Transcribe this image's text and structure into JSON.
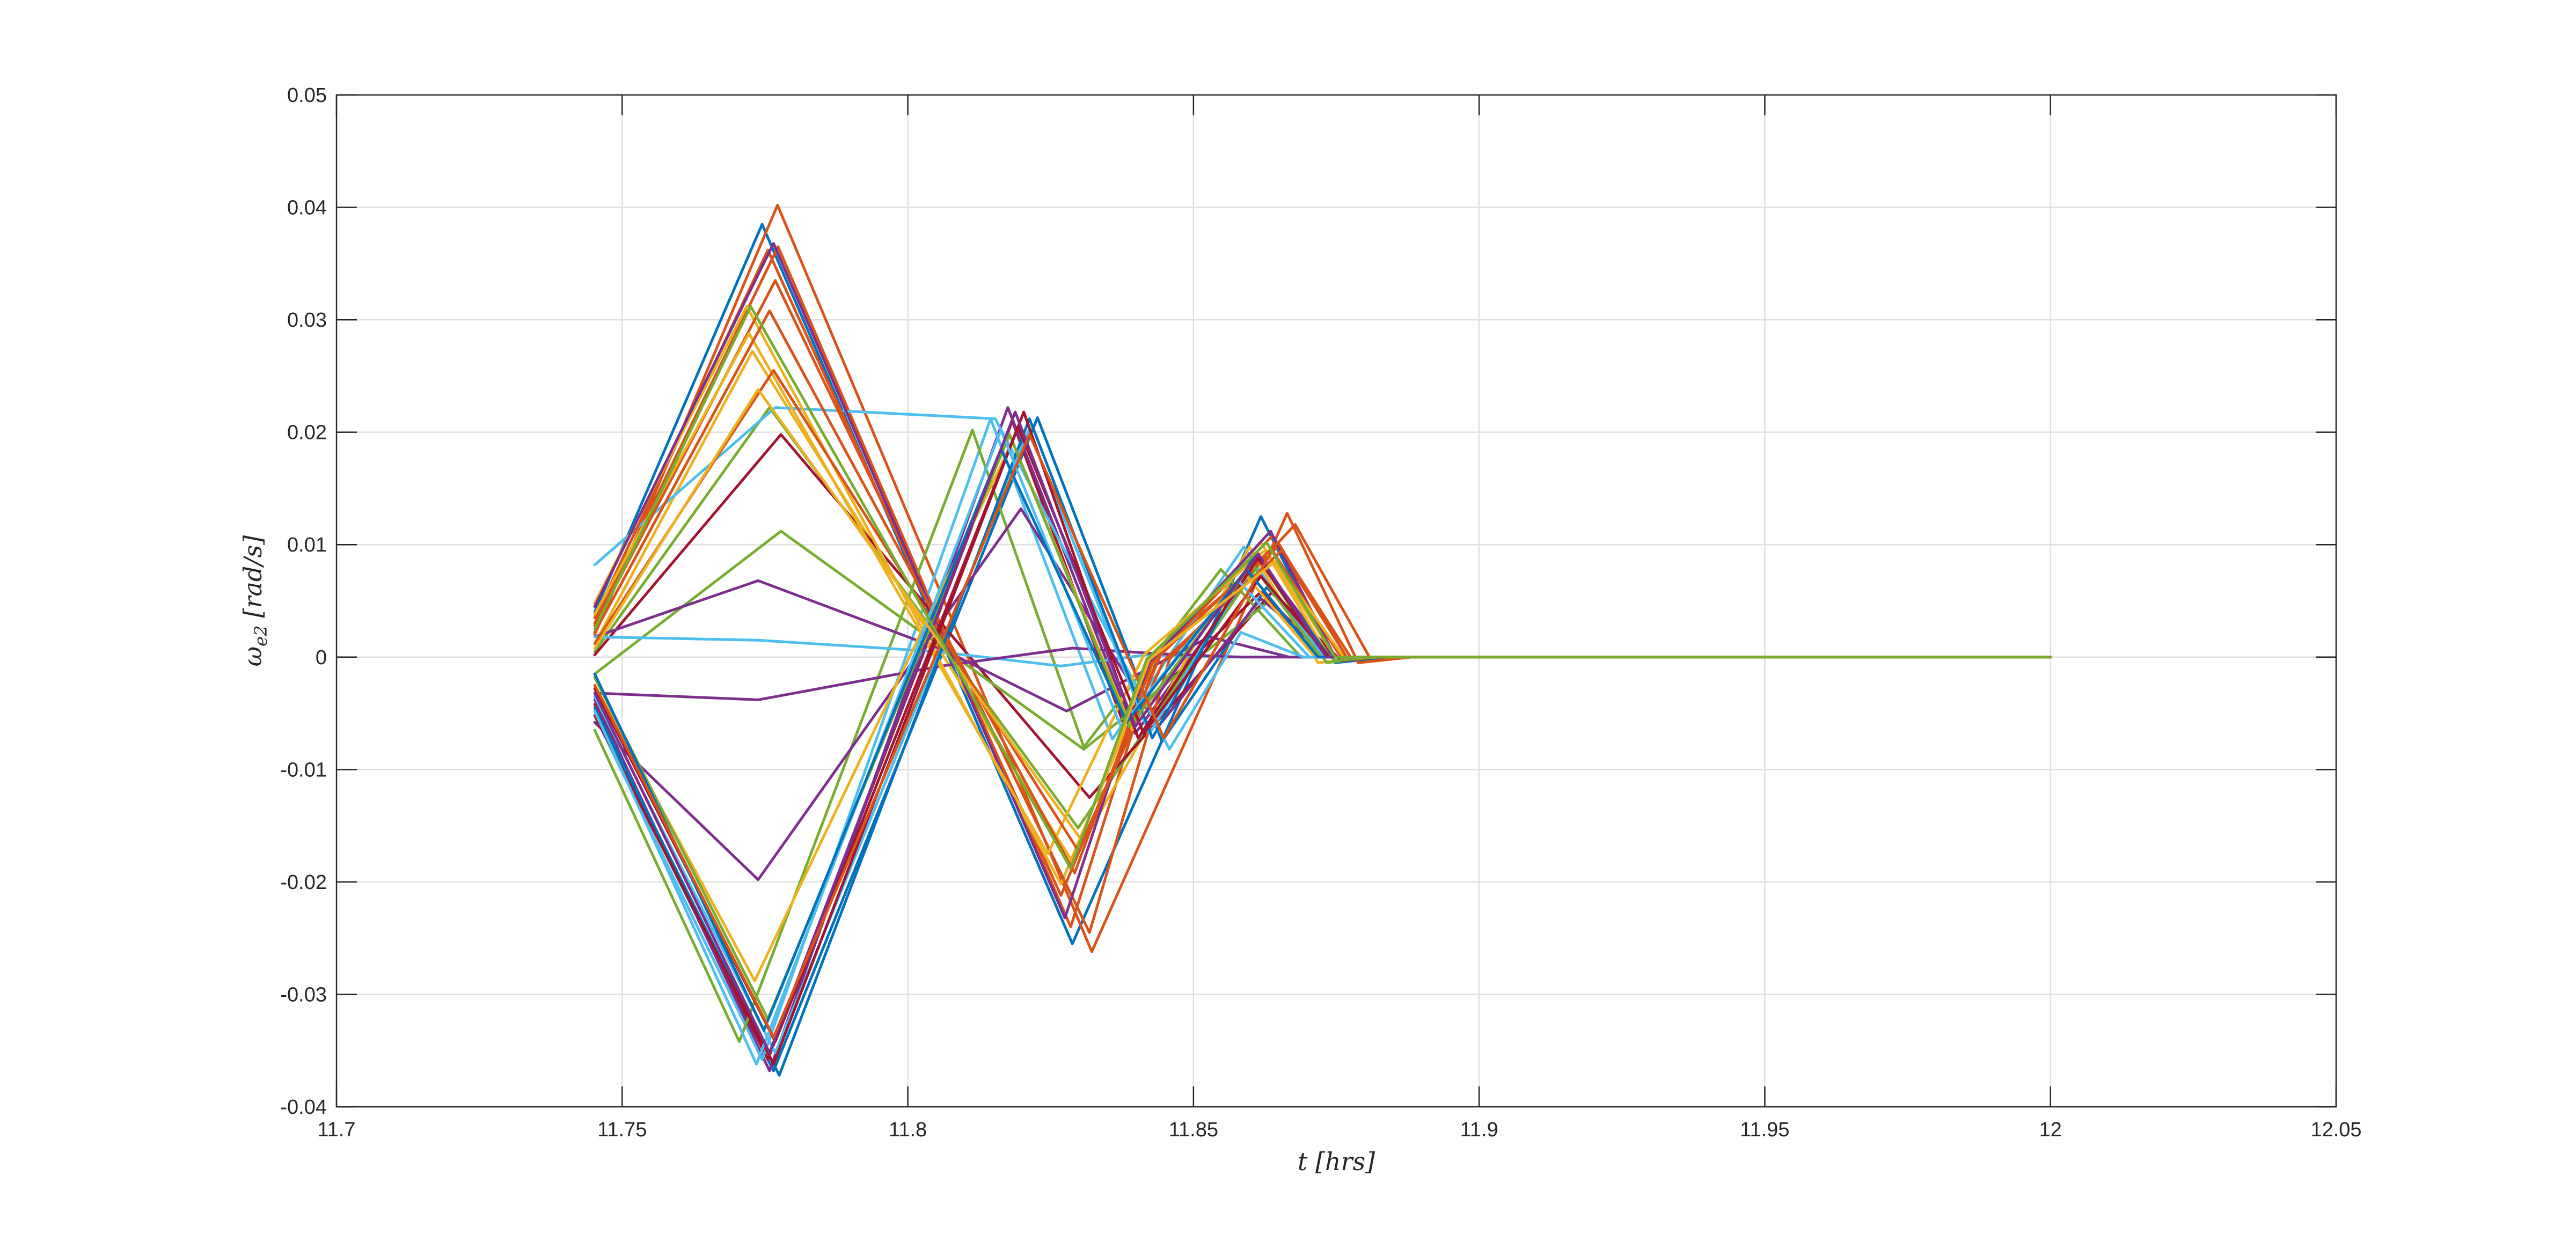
{
  "chart_data": {
    "type": "line",
    "title": "",
    "xlabel": "t [hrs]",
    "ylabel": "ωe2 [rad/s]",
    "ylabel_parts": {
      "symbol": "ω",
      "subscript": "e2",
      "unit": "[rad/s]"
    },
    "xlim": [
      11.7,
      12.05
    ],
    "ylim": [
      -0.04,
      0.05
    ],
    "xticks": [
      11.7,
      11.75,
      11.8,
      11.85,
      11.9,
      11.95,
      12,
      12.05
    ],
    "xtick_labels": [
      "11.7",
      "11.75",
      "11.8",
      "11.85",
      "11.9",
      "11.95",
      "12",
      "12.05"
    ],
    "yticks": [
      -0.04,
      -0.03,
      -0.02,
      -0.01,
      0,
      0.01,
      0.02,
      0.03,
      0.04,
      0.05
    ],
    "ytick_labels": [
      "-0.04",
      "-0.03",
      "-0.02",
      "-0.01",
      "0",
      "0.01",
      "0.02",
      "0.03",
      "0.04",
      "0.05"
    ],
    "grid": true,
    "legend": "none",
    "colors": [
      "#0072BD",
      "#D95319",
      "#EDB120",
      "#7E2F8E",
      "#77AC30",
      "#4DBEEE",
      "#A2142F"
    ],
    "series": [
      {
        "color": "#0072BD",
        "x": [
          11.7452,
          11.7745,
          11.8288,
          11.8618,
          11.8748,
          11.8843,
          12.0
        ],
        "y": [
          0.004,
          0.0385,
          -0.0255,
          0.0125,
          -0.0005,
          0.0,
          0.0
        ]
      },
      {
        "color": "#D95319",
        "x": [
          11.7452,
          11.7772,
          11.8322,
          11.8664,
          11.8788,
          11.8883,
          12.0
        ],
        "y": [
          0.002,
          0.0402,
          -0.0262,
          0.0128,
          -0.0005,
          0.0,
          0.0
        ]
      },
      {
        "color": "#0072BD",
        "x": [
          11.7452,
          11.7765,
          11.8227,
          11.8445,
          11.8628,
          11.8748,
          12.0
        ],
        "y": [
          -0.0048,
          -0.0368,
          0.0213,
          -0.0075,
          0.0062,
          0.0,
          0.0
        ]
      },
      {
        "color": "#D95319",
        "x": [
          11.7452,
          11.7773,
          11.8285,
          11.8438,
          11.8648,
          11.8768,
          12.0
        ],
        "y": [
          0.003,
          0.0365,
          -0.024,
          0.0005,
          0.0098,
          0.0,
          0.0
        ]
      },
      {
        "color": "#A2142F",
        "x": [
          11.7452,
          11.7755,
          11.8183,
          11.8378,
          11.8618,
          11.8733,
          12.0
        ],
        "y": [
          -0.0042,
          -0.0358,
          0.021,
          -0.006,
          0.0058,
          0.0,
          0.0
        ]
      },
      {
        "color": "#7E2F8E",
        "x": [
          11.7452,
          11.7758,
          11.8175,
          11.8398,
          11.8618,
          11.8743,
          12.0
        ],
        "y": [
          -0.0038,
          -0.0368,
          0.0222,
          -0.0068,
          0.0085,
          0.0,
          0.0
        ]
      },
      {
        "color": "#4DBEEE",
        "x": [
          11.7452,
          11.7745,
          11.8145,
          11.8358,
          11.8588,
          11.8718,
          12.0
        ],
        "y": [
          -0.0052,
          -0.0358,
          0.0212,
          -0.0073,
          0.0098,
          0.0,
          0.0
        ]
      },
      {
        "color": "#77AC30",
        "x": [
          11.7452,
          11.7705,
          11.8113,
          11.8308,
          11.8548,
          11.8688,
          12.0
        ],
        "y": [
          -0.0065,
          -0.0342,
          0.0202,
          -0.008,
          0.0078,
          0.0,
          0.0
        ]
      },
      {
        "color": "#EDB120",
        "x": [
          11.7452,
          11.7728,
          11.8288,
          11.8598,
          11.8718,
          11.8808,
          12.0
        ],
        "y": [
          0.0012,
          0.0272,
          -0.0182,
          0.0098,
          -0.0005,
          0.0,
          0.0
        ]
      },
      {
        "color": "#77AC30",
        "x": [
          11.7452,
          11.7758,
          11.8298,
          11.8618,
          11.8733,
          11.8818,
          12.0
        ],
        "y": [
          0.0005,
          0.0222,
          -0.0152,
          0.0085,
          -0.0005,
          0.0,
          0.0
        ]
      },
      {
        "color": "#A2142F",
        "x": [
          11.7452,
          11.7778,
          11.8318,
          11.8638,
          11.8758,
          11.8833,
          12.0
        ],
        "y": [
          0.0002,
          0.0198,
          -0.0125,
          0.0058,
          -0.0003,
          0.0,
          0.0
        ]
      },
      {
        "color": "#77AC30",
        "x": [
          11.7452,
          11.7778,
          11.8308,
          11.8628,
          11.8748,
          11.8828,
          12.0
        ],
        "y": [
          -0.0015,
          0.0112,
          -0.0082,
          0.0048,
          -0.0003,
          0.0,
          0.0
        ]
      },
      {
        "color": "#7E2F8E",
        "x": [
          11.7452,
          11.7738,
          11.8068,
          11.8278,
          11.8528,
          11.8668,
          12.0
        ],
        "y": [
          0.0018,
          0.0068,
          0.0005,
          -0.0048,
          0.0018,
          0.0,
          0.0
        ]
      },
      {
        "color": "#4DBEEE",
        "x": [
          11.7452,
          11.7738,
          11.8048,
          11.8268,
          11.8418,
          11.8543,
          12.0
        ],
        "y": [
          0.0018,
          0.0015,
          0.0005,
          -0.0008,
          0.0002,
          0.0,
          0.0
        ]
      },
      {
        "color": "#7E2F8E",
        "x": [
          11.7452,
          11.7738,
          11.8058,
          11.8288,
          11.8438,
          11.8583,
          12.0
        ],
        "y": [
          -0.0032,
          -0.0038,
          -0.0008,
          0.0008,
          0.0003,
          0.0,
          0.0
        ]
      },
      {
        "color": "#7E2F8E",
        "x": [
          11.7452,
          11.7738,
          11.8198,
          11.8438,
          11.8618,
          11.8738,
          12.0
        ],
        "y": [
          -0.0058,
          -0.0198,
          0.0132,
          -0.0062,
          0.0052,
          0.0,
          0.0
        ]
      },
      {
        "color": "#4DBEEE",
        "x": [
          11.7452,
          11.7768,
          11.8153,
          11.8458,
          11.8583,
          11.8693,
          12.0
        ],
        "y": [
          0.0082,
          0.0222,
          0.0212,
          -0.0082,
          0.0022,
          0.0,
          0.0
        ]
      },
      {
        "color": "#D95319",
        "x": [
          11.7452,
          11.7755,
          11.8268,
          11.8445,
          11.8638,
          11.8768,
          12.0
        ],
        "y": [
          0.0035,
          0.0362,
          -0.0212,
          0.0005,
          0.0108,
          0.0,
          0.0
        ]
      },
      {
        "color": "#EDB120",
        "x": [
          11.7452,
          11.7718,
          11.8268,
          11.8438,
          11.8618,
          11.8748,
          12.0
        ],
        "y": [
          0.0048,
          0.0312,
          -0.0202,
          0.0005,
          0.0102,
          0.0,
          0.0
        ]
      },
      {
        "color": "#D95319",
        "x": [
          11.7452,
          11.7768,
          11.8318,
          11.8458,
          11.8678,
          11.8808,
          12.0
        ],
        "y": [
          0.0028,
          0.0335,
          -0.0245,
          -0.0002,
          0.0118,
          0.0,
          0.0
        ]
      },
      {
        "color": "#7E2F8E",
        "x": [
          11.7452,
          11.7765,
          11.8275,
          11.8423,
          11.8635,
          11.8748,
          12.0
        ],
        "y": [
          0.0045,
          0.0368,
          -0.0232,
          -0.0005,
          0.0112,
          0.0,
          0.0
        ]
      },
      {
        "color": "#EDB120",
        "x": [
          11.7452,
          11.7722,
          11.8245,
          11.8413,
          11.8625,
          11.8738,
          12.0
        ],
        "y": [
          0.0038,
          0.0288,
          -0.0175,
          0.0002,
          0.0095,
          0.0,
          0.0
        ]
      },
      {
        "color": "#D95319",
        "x": [
          11.7452,
          11.7758,
          11.8292,
          11.8428,
          11.8648,
          11.8768,
          12.0
        ],
        "y": [
          0.0022,
          0.0308,
          -0.0192,
          -0.0005,
          0.0102,
          0.0,
          0.0
        ]
      },
      {
        "color": "#D95319",
        "x": [
          11.7452,
          11.7765,
          11.8298,
          11.8448,
          11.8655,
          11.8775,
          12.0
        ],
        "y": [
          0.0012,
          0.0255,
          -0.0172,
          -0.0003,
          0.0095,
          0.0,
          0.0
        ]
      },
      {
        "color": "#4DBEEE",
        "x": [
          11.7452,
          11.7768,
          11.8212,
          11.8423,
          11.8603,
          11.8728,
          12.0
        ],
        "y": [
          -0.0035,
          -0.0352,
          0.0202,
          -0.0068,
          0.0082,
          0.0,
          0.0
        ]
      },
      {
        "color": "#0072BD",
        "x": [
          11.7452,
          11.7775,
          11.8213,
          11.8428,
          11.8608,
          11.8738,
          12.0
        ],
        "y": [
          -0.0045,
          -0.0372,
          0.0212,
          -0.0072,
          0.0092,
          0.0,
          0.0
        ]
      },
      {
        "color": "#EDB120",
        "x": [
          11.7452,
          11.7732,
          11.8183,
          11.8393,
          11.8588,
          11.8713,
          12.0
        ],
        "y": [
          -0.0025,
          -0.0288,
          0.0192,
          -0.0065,
          0.0075,
          0.0,
          0.0
        ]
      },
      {
        "color": "#77AC30",
        "x": [
          11.7452,
          11.7755,
          11.8178,
          11.8388,
          11.8603,
          11.8723,
          12.0
        ],
        "y": [
          -0.0018,
          -0.0322,
          0.0198,
          -0.0062,
          0.0082,
          0.0,
          0.0
        ]
      },
      {
        "color": "#A2142F",
        "x": [
          11.7452,
          11.7765,
          11.8203,
          11.8403,
          11.8613,
          11.8733,
          12.0
        ],
        "y": [
          -0.0052,
          -0.0362,
          0.0218,
          -0.0072,
          0.0088,
          0.0,
          0.0
        ]
      },
      {
        "color": "#A2142F",
        "x": [
          11.7452,
          11.7768,
          11.8193,
          11.8413,
          11.8618,
          11.8738,
          12.0
        ],
        "y": [
          -0.0028,
          -0.0342,
          0.0205,
          -0.0068,
          0.0072,
          0.0,
          0.0
        ]
      },
      {
        "color": "#4DBEEE",
        "x": [
          11.7452,
          11.7735,
          11.8163,
          11.8373,
          11.8578,
          11.8703,
          12.0
        ],
        "y": [
          -0.0048,
          -0.0362,
          0.0202,
          -0.0062,
          0.0068,
          0.0,
          0.0
        ]
      },
      {
        "color": "#0072BD",
        "x": [
          11.7452,
          11.7748,
          11.8163,
          11.8383,
          11.8593,
          11.8718,
          12.0
        ],
        "y": [
          -0.0015,
          -0.0332,
          0.0185,
          -0.0058,
          0.0078,
          0.0,
          0.0
        ]
      },
      {
        "color": "#7E2F8E",
        "x": [
          11.7452,
          11.7758,
          11.8188,
          11.8398,
          11.8613,
          11.8733,
          12.0
        ],
        "y": [
          -0.0032,
          -0.0352,
          0.0218,
          -0.0062,
          0.0092,
          0.0,
          0.0
        ]
      },
      {
        "color": "#D95319",
        "x": [
          11.7452,
          11.7765,
          11.8213,
          11.8448,
          11.8638,
          11.8758,
          12.0
        ],
        "y": [
          -0.0025,
          -0.0338,
          0.0198,
          -0.0072,
          0.0095,
          0.0,
          0.0
        ]
      },
      {
        "color": "#EDB120",
        "x": [
          11.7452,
          11.7738,
          11.8303,
          11.8423,
          11.8643,
          11.8763,
          12.0
        ],
        "y": [
          0.0008,
          0.0238,
          -0.0162,
          -0.0002,
          0.0085,
          0.0,
          0.0
        ]
      },
      {
        "color": "#77AC30",
        "x": [
          11.7452,
          11.7725,
          11.8285,
          11.8418,
          11.8628,
          11.8748,
          12.0
        ],
        "y": [
          0.0025,
          0.0312,
          -0.0188,
          -0.0002,
          0.0102,
          0.0,
          0.0
        ]
      }
    ]
  }
}
